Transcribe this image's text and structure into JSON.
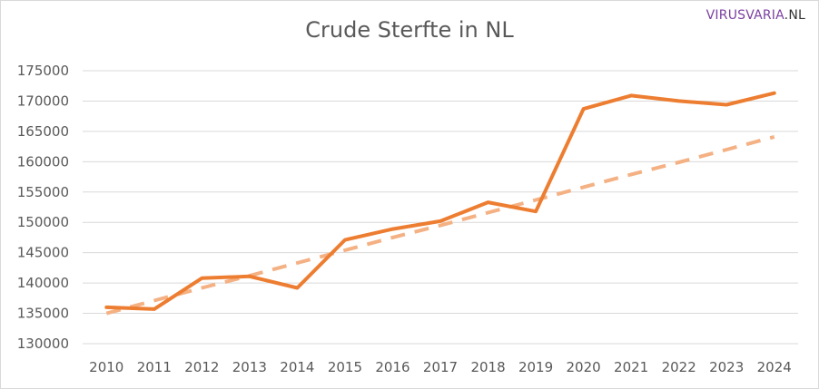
{
  "title": "Crude Sterfte in NL",
  "brand": {
    "part1": "VIRUSVARIA",
    "part2": ".NL"
  },
  "chart_data": {
    "type": "line",
    "title": "Crude Sterfte in NL",
    "xlabel": "",
    "ylabel": "",
    "categories": [
      "2010",
      "2011",
      "2012",
      "2013",
      "2014",
      "2015",
      "2016",
      "2017",
      "2018",
      "2019",
      "2020",
      "2021",
      "2022",
      "2023",
      "2024"
    ],
    "ylim": [
      130000,
      175000
    ],
    "yticks": [
      130000,
      135000,
      140000,
      145000,
      150000,
      155000,
      160000,
      165000,
      170000,
      175000
    ],
    "grid": true,
    "legend": "none",
    "series": [
      {
        "style": "solid",
        "color": "#ed7d31",
        "values": [
          136000,
          135700,
          140800,
          141100,
          139200,
          147100,
          148900,
          150200,
          153300,
          151800,
          168700,
          170900,
          170000,
          169400,
          171300
        ]
      },
      {
        "style": "dashed",
        "trend": "linear",
        "color": "#f4b183",
        "values": [
          135000,
          137100,
          139200,
          141200,
          143300,
          145400,
          147500,
          149500,
          151600,
          153700,
          155800,
          157900,
          159900,
          162000,
          164100
        ]
      }
    ]
  }
}
